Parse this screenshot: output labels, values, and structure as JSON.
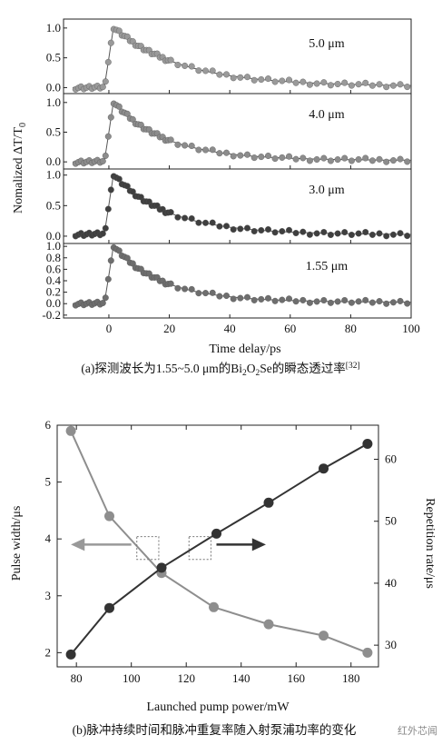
{
  "chart_data": [
    {
      "type": "scatter",
      "panel": "a",
      "ylabel_main": "Nomalized ΔT/T",
      "ylabel_sub": "0",
      "xlabel": "Time delay/ps",
      "xlim": [
        -15,
        100
      ],
      "x_ticks": [
        "0",
        "20",
        "40",
        "60",
        "80",
        "100"
      ],
      "caption": {
        "prefix": "(a)探测波长为1.55~5.0 μm的Bi",
        "sub1": "2",
        "mid1": "O",
        "sub2": "2",
        "mid2": "Se的瞬态透过率",
        "sup": "[32]"
      },
      "subplots": [
        {
          "label": "5.0 μm",
          "color": "#9a9a9a",
          "ylim": [
            -0.1,
            1.15
          ],
          "y_ticks": [
            "0.0",
            "0.5",
            "1.0"
          ],
          "tau": 22,
          "baseline": 0.0
        },
        {
          "label": "4.0 μm",
          "color": "#8c8c8c",
          "ylim": [
            -0.12,
            1.15
          ],
          "y_ticks": [
            "0.0",
            "0.5",
            "1.0"
          ],
          "tau": 17,
          "baseline": 0.0
        },
        {
          "label": "3.0 μm",
          "color": "#3f3f3f",
          "ylim": [
            -0.12,
            1.1
          ],
          "y_ticks": [
            "0.0",
            "0.5",
            "1.0"
          ],
          "tau": 18,
          "baseline": 0.03
        },
        {
          "label": "1.55 μm",
          "color": "#6e6e6e",
          "ylim": [
            -0.25,
            1.05
          ],
          "y_ticks": [
            "-0.2",
            "0.0",
            "0.2",
            "0.4",
            "0.6",
            "0.8",
            "1.0"
          ],
          "tau": 16,
          "baseline": 0.0
        }
      ]
    },
    {
      "type": "line",
      "panel": "b",
      "xlabel": "Launched pump power/mW",
      "ylabel": "Pulse width/μs",
      "ylabel_right": "Repetition rate/μs",
      "xlim": [
        73,
        190
      ],
      "ylim": [
        1.75,
        6.0
      ],
      "ylim_right": [
        26.5,
        65.5
      ],
      "x_ticks": [
        "80",
        "100",
        "120",
        "140",
        "160",
        "180"
      ],
      "y_ticks": [
        "2",
        "3",
        "4",
        "5",
        "6"
      ],
      "y_ticks_right": [
        "30",
        "40",
        "50",
        "60"
      ],
      "caption": "(b)脉冲持续时间和脉冲重复率随入射泵浦功率的变化",
      "watermark": "红外芯闻",
      "series": [
        {
          "axis": "left",
          "color": "#8e8e8e",
          "x": [
            78,
            92,
            111,
            130,
            150,
            170,
            186
          ],
          "values": [
            5.9,
            4.4,
            3.4,
            2.8,
            2.5,
            2.3,
            2.0
          ]
        },
        {
          "axis": "right",
          "color": "#333333",
          "x": [
            78,
            92,
            111,
            131,
            150,
            170,
            186
          ],
          "values": [
            28.5,
            36.0,
            42.5,
            48.0,
            53.0,
            58.5,
            62.5
          ]
        }
      ]
    }
  ]
}
